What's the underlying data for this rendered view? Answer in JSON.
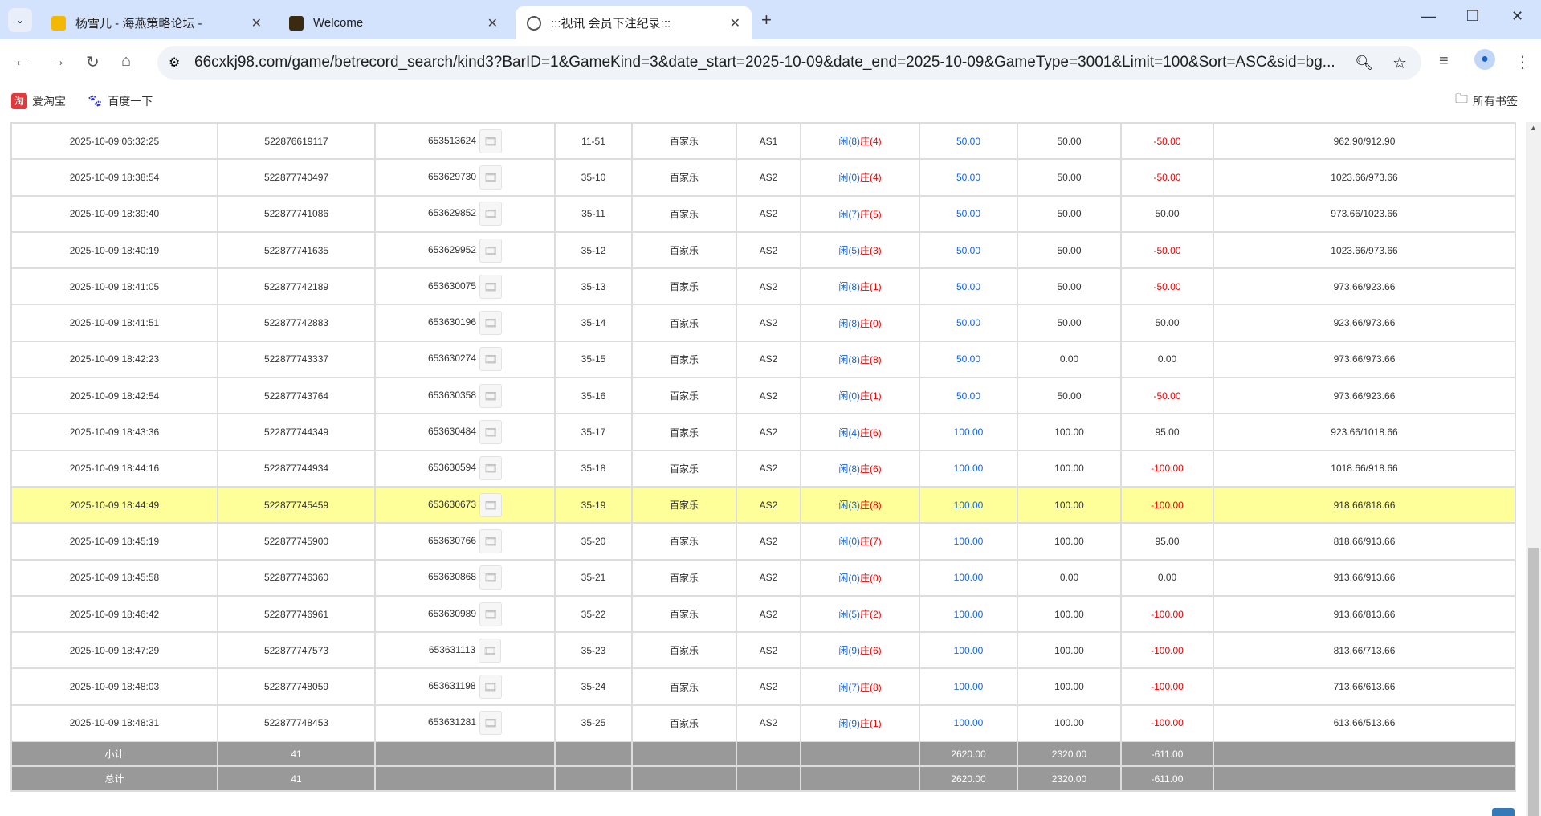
{
  "browser": {
    "tabs": [
      {
        "title": "杨雪儿 - 海燕策略论坛 -",
        "active": false
      },
      {
        "title": "Welcome",
        "active": false
      },
      {
        "title": ":::视讯 会员下注纪录:::",
        "active": true
      }
    ],
    "url": "66cxkj98.com/game/betrecord_search/kind3?BarID=1&GameKind=3&date_start=2025-10-09&date_end=2025-10-09&GameType=3001&Limit=100&Sort=ASC&sid=bg...",
    "bookmarks": [
      "爱淘宝",
      "百度一下"
    ],
    "all_bookmarks": "所有书签"
  },
  "colors": {
    "player": "#1565e0",
    "banker": "#e00000",
    "highlight": "#ffff99",
    "summary": "#999999"
  },
  "rows": [
    {
      "time": "2025-10-09 06:32:25",
      "bet_id": "522876619117",
      "round_id": "653513624",
      "table_no": "11-51",
      "game": "百家乐",
      "table": "AS1",
      "p": "闲(8)",
      "b": "庄(4)",
      "bet": "50.00",
      "valid": "50.00",
      "win": "-50.00",
      "balance": "962.90/912.90"
    },
    {
      "time": "2025-10-09 18:38:54",
      "bet_id": "522877740497",
      "round_id": "653629730",
      "table_no": "35-10",
      "game": "百家乐",
      "table": "AS2",
      "p": "闲(0)",
      "b": "庄(4)",
      "bet": "50.00",
      "valid": "50.00",
      "win": "-50.00",
      "balance": "1023.66/973.66"
    },
    {
      "time": "2025-10-09 18:39:40",
      "bet_id": "522877741086",
      "round_id": "653629852",
      "table_no": "35-11",
      "game": "百家乐",
      "table": "AS2",
      "p": "闲(7)",
      "b": "庄(5)",
      "bet": "50.00",
      "valid": "50.00",
      "win": "50.00",
      "balance": "973.66/1023.66"
    },
    {
      "time": "2025-10-09 18:40:19",
      "bet_id": "522877741635",
      "round_id": "653629952",
      "table_no": "35-12",
      "game": "百家乐",
      "table": "AS2",
      "p": "闲(5)",
      "b": "庄(3)",
      "bet": "50.00",
      "valid": "50.00",
      "win": "-50.00",
      "balance": "1023.66/973.66"
    },
    {
      "time": "2025-10-09 18:41:05",
      "bet_id": "522877742189",
      "round_id": "653630075",
      "table_no": "35-13",
      "game": "百家乐",
      "table": "AS2",
      "p": "闲(8)",
      "b": "庄(1)",
      "bet": "50.00",
      "valid": "50.00",
      "win": "-50.00",
      "balance": "973.66/923.66"
    },
    {
      "time": "2025-10-09 18:41:51",
      "bet_id": "522877742883",
      "round_id": "653630196",
      "table_no": "35-14",
      "game": "百家乐",
      "table": "AS2",
      "p": "闲(8)",
      "b": "庄(0)",
      "bet": "50.00",
      "valid": "50.00",
      "win": "50.00",
      "balance": "923.66/973.66"
    },
    {
      "time": "2025-10-09 18:42:23",
      "bet_id": "522877743337",
      "round_id": "653630274",
      "table_no": "35-15",
      "game": "百家乐",
      "table": "AS2",
      "p": "闲(8)",
      "b": "庄(8)",
      "bet": "50.00",
      "valid": "0.00",
      "win": "0.00",
      "balance": "973.66/973.66"
    },
    {
      "time": "2025-10-09 18:42:54",
      "bet_id": "522877743764",
      "round_id": "653630358",
      "table_no": "35-16",
      "game": "百家乐",
      "table": "AS2",
      "p": "闲(0)",
      "b": "庄(1)",
      "bet": "50.00",
      "valid": "50.00",
      "win": "-50.00",
      "balance": "973.66/923.66"
    },
    {
      "time": "2025-10-09 18:43:36",
      "bet_id": "522877744349",
      "round_id": "653630484",
      "table_no": "35-17",
      "game": "百家乐",
      "table": "AS2",
      "p": "闲(4)",
      "b": "庄(6)",
      "bet": "100.00",
      "valid": "100.00",
      "win": "95.00",
      "balance": "923.66/1018.66"
    },
    {
      "time": "2025-10-09 18:44:16",
      "bet_id": "522877744934",
      "round_id": "653630594",
      "table_no": "35-18",
      "game": "百家乐",
      "table": "AS2",
      "p": "闲(8)",
      "b": "庄(6)",
      "bet": "100.00",
      "valid": "100.00",
      "win": "-100.00",
      "balance": "1018.66/918.66"
    },
    {
      "time": "2025-10-09 18:44:49",
      "bet_id": "522877745459",
      "round_id": "653630673",
      "table_no": "35-19",
      "game": "百家乐",
      "table": "AS2",
      "p": "闲(3)",
      "b": "庄(8)",
      "bet": "100.00",
      "valid": "100.00",
      "win": "-100.00",
      "balance": "918.66/818.66",
      "highlight": true
    },
    {
      "time": "2025-10-09 18:45:19",
      "bet_id": "522877745900",
      "round_id": "653630766",
      "table_no": "35-20",
      "game": "百家乐",
      "table": "AS2",
      "p": "闲(0)",
      "b": "庄(7)",
      "bet": "100.00",
      "valid": "100.00",
      "win": "95.00",
      "balance": "818.66/913.66"
    },
    {
      "time": "2025-10-09 18:45:58",
      "bet_id": "522877746360",
      "round_id": "653630868",
      "table_no": "35-21",
      "game": "百家乐",
      "table": "AS2",
      "p": "闲(0)",
      "b": "庄(0)",
      "bet": "100.00",
      "valid": "0.00",
      "win": "0.00",
      "balance": "913.66/913.66"
    },
    {
      "time": "2025-10-09 18:46:42",
      "bet_id": "522877746961",
      "round_id": "653630989",
      "table_no": "35-22",
      "game": "百家乐",
      "table": "AS2",
      "p": "闲(5)",
      "b": "庄(2)",
      "bet": "100.00",
      "valid": "100.00",
      "win": "-100.00",
      "balance": "913.66/813.66"
    },
    {
      "time": "2025-10-09 18:47:29",
      "bet_id": "522877747573",
      "round_id": "653631113",
      "table_no": "35-23",
      "game": "百家乐",
      "table": "AS2",
      "p": "闲(9)",
      "b": "庄(6)",
      "bet": "100.00",
      "valid": "100.00",
      "win": "-100.00",
      "balance": "813.66/713.66"
    },
    {
      "time": "2025-10-09 18:48:03",
      "bet_id": "522877748059",
      "round_id": "653631198",
      "table_no": "35-24",
      "game": "百家乐",
      "table": "AS2",
      "p": "闲(7)",
      "b": "庄(8)",
      "bet": "100.00",
      "valid": "100.00",
      "win": "-100.00",
      "balance": "713.66/613.66"
    },
    {
      "time": "2025-10-09 18:48:31",
      "bet_id": "522877748453",
      "round_id": "653631281",
      "table_no": "35-25",
      "game": "百家乐",
      "table": "AS2",
      "p": "闲(9)",
      "b": "庄(1)",
      "bet": "100.00",
      "valid": "100.00",
      "win": "-100.00",
      "balance": "613.66/513.66"
    }
  ],
  "subtotal": {
    "label": "小计",
    "count": "41",
    "bet": "2620.00",
    "valid": "2320.00",
    "win": "-611.00"
  },
  "total": {
    "label": "总计",
    "count": "41",
    "bet": "2620.00",
    "valid": "2320.00",
    "win": "-611.00"
  }
}
